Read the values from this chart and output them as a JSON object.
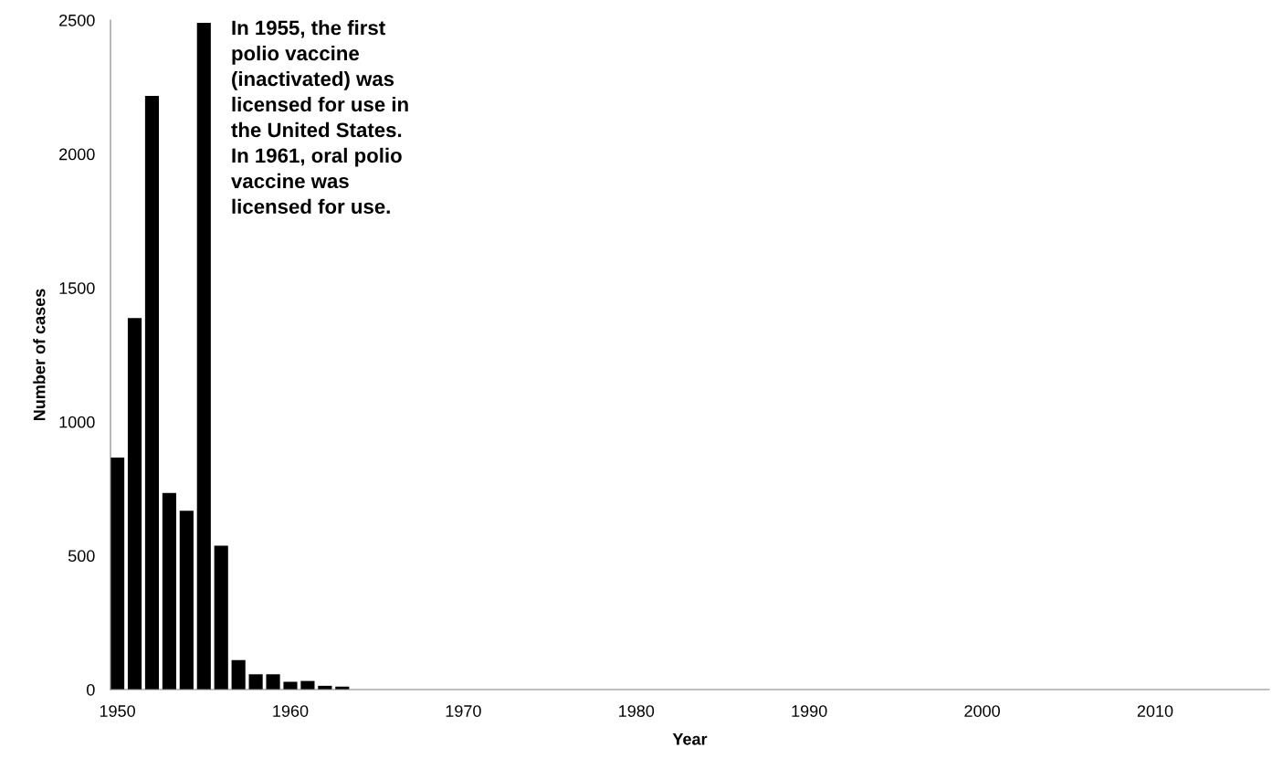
{
  "chart_data": {
    "type": "bar",
    "xlabel": "Year",
    "ylabel": "Number of cases",
    "color": "#000000",
    "x": [
      1950,
      1951,
      1952,
      1953,
      1954,
      1955,
      1956,
      1957,
      1958,
      1959,
      1960,
      1961,
      1962,
      1963
    ],
    "values": [
      866,
      1387,
      2217,
      734,
      668,
      2490,
      537,
      110,
      57,
      57,
      29,
      32,
      14,
      11
    ],
    "xlim": [
      1949.6,
      2016.6
    ],
    "xticks": [
      1950,
      1960,
      1970,
      1980,
      1990,
      2000,
      2010
    ],
    "ylim": [
      0,
      2500
    ],
    "yticks": [
      0,
      500,
      1000,
      1500,
      2000,
      2500
    ],
    "grid": false,
    "legend": false,
    "annotations": [
      "In 1955, the first\npolio vaccine\n(inactivated) was\nlicensed for use in\nthe United States.\nIn 1961, oral polio\nvaccine was\nlicensed for use."
    ]
  }
}
